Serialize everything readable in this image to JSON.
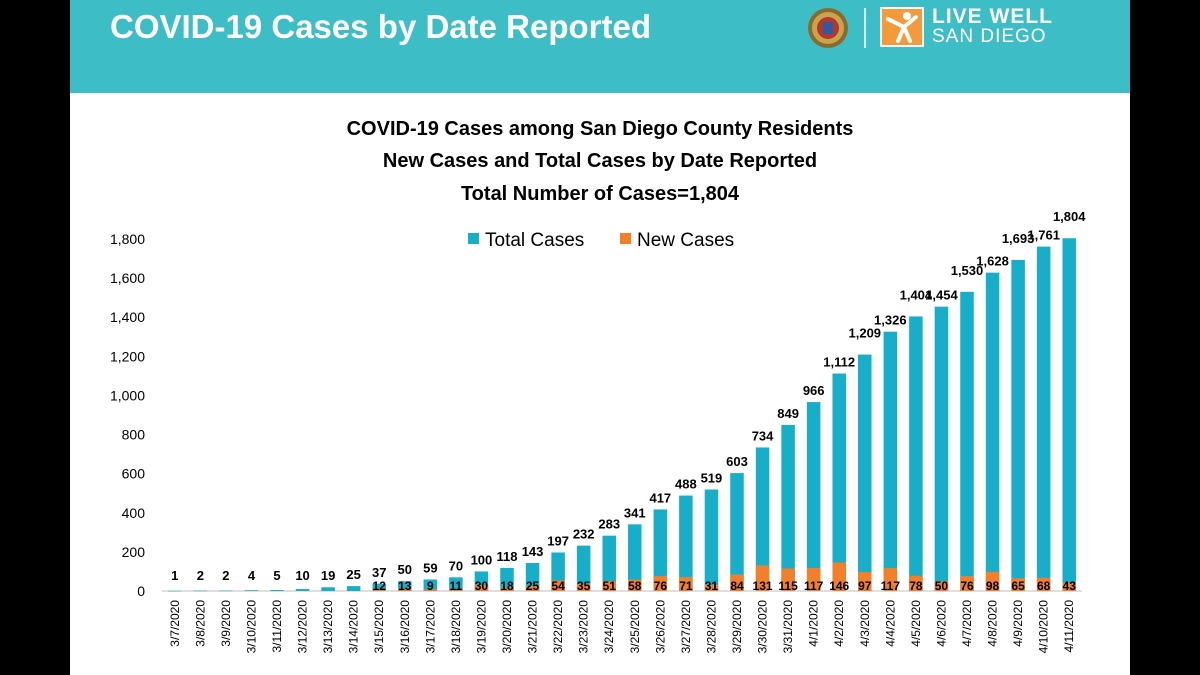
{
  "header": {
    "title": "COVID-19 Cases by Date Reported",
    "brand_line1": "LIVE WELL",
    "brand_line2": "SAN DIEGO",
    "bg_color": "#3dbdc6"
  },
  "chart_data": {
    "type": "bar",
    "title_lines": [
      "COVID-19 Cases among San Diego County Residents",
      "New Cases and Total Cases by Date Reported",
      "Total Number of Cases=1,804"
    ],
    "categories": [
      "3/7/2020",
      "3/8/2020",
      "3/9/2020",
      "3/10/2020",
      "3/11/2020",
      "3/12/2020",
      "3/13/2020",
      "3/14/2020",
      "3/15/2020",
      "3/16/2020",
      "3/17/2020",
      "3/18/2020",
      "3/19/2020",
      "3/20/2020",
      "3/21/2020",
      "3/22/2020",
      "3/23/2020",
      "3/24/2020",
      "3/25/2020",
      "3/26/2020",
      "3/27/2020",
      "3/28/2020",
      "3/29/2020",
      "3/30/2020",
      "3/31/2020",
      "4/1/2020",
      "4/2/2020",
      "4/3/2020",
      "4/4/2020",
      "4/5/2020",
      "4/6/2020",
      "4/7/2020",
      "4/8/2020",
      "4/9/2020",
      "4/10/2020",
      "4/11/2020"
    ],
    "series": [
      {
        "name": "Total Cases",
        "color": "#16aec8",
        "values": [
          1,
          2,
          2,
          4,
          5,
          10,
          19,
          25,
          37,
          50,
          59,
          70,
          100,
          118,
          143,
          197,
          232,
          283,
          341,
          417,
          488,
          519,
          603,
          734,
          849,
          966,
          1112,
          1209,
          1326,
          1404,
          1454,
          1530,
          1628,
          1693,
          1761,
          1804
        ],
        "labels": [
          "1",
          "2",
          "2",
          "4",
          "5",
          "10",
          "19",
          "25",
          "37",
          "50",
          "59",
          "70",
          "100",
          "118",
          "143",
          "197",
          "232",
          "283",
          "341",
          "417",
          "488",
          "519",
          "603",
          "734",
          "849",
          "966",
          "1,112",
          "1,209",
          "1,326",
          "1,404",
          "1,454",
          "1,530",
          "1,628",
          "1,693",
          "1,761",
          "1,804"
        ]
      },
      {
        "name": "New Cases",
        "color": "#f47f2a",
        "values": [
          null,
          null,
          null,
          null,
          null,
          null,
          null,
          null,
          12,
          13,
          9,
          11,
          30,
          18,
          25,
          54,
          35,
          51,
          58,
          76,
          71,
          31,
          84,
          131,
          115,
          117,
          146,
          97,
          117,
          78,
          50,
          76,
          98,
          65,
          68,
          43
        ],
        "labels": [
          "",
          "",
          "",
          "",
          "",
          "",
          "",
          "",
          "12",
          "13",
          "9",
          "11",
          "30",
          "18",
          "25",
          "54",
          "35",
          "51",
          "58",
          "76",
          "71",
          "31",
          "84",
          "131",
          "115",
          "117",
          "146",
          "97",
          "117",
          "78",
          "50",
          "76",
          "98",
          "65",
          "68",
          "43"
        ]
      }
    ],
    "y_ticks": [
      "0",
      "200",
      "400",
      "600",
      "800",
      "1,000",
      "1,200",
      "1,400",
      "1,600",
      "1,800"
    ],
    "ylim": [
      0,
      1800
    ],
    "legend_position": "top-center",
    "grid": false
  }
}
